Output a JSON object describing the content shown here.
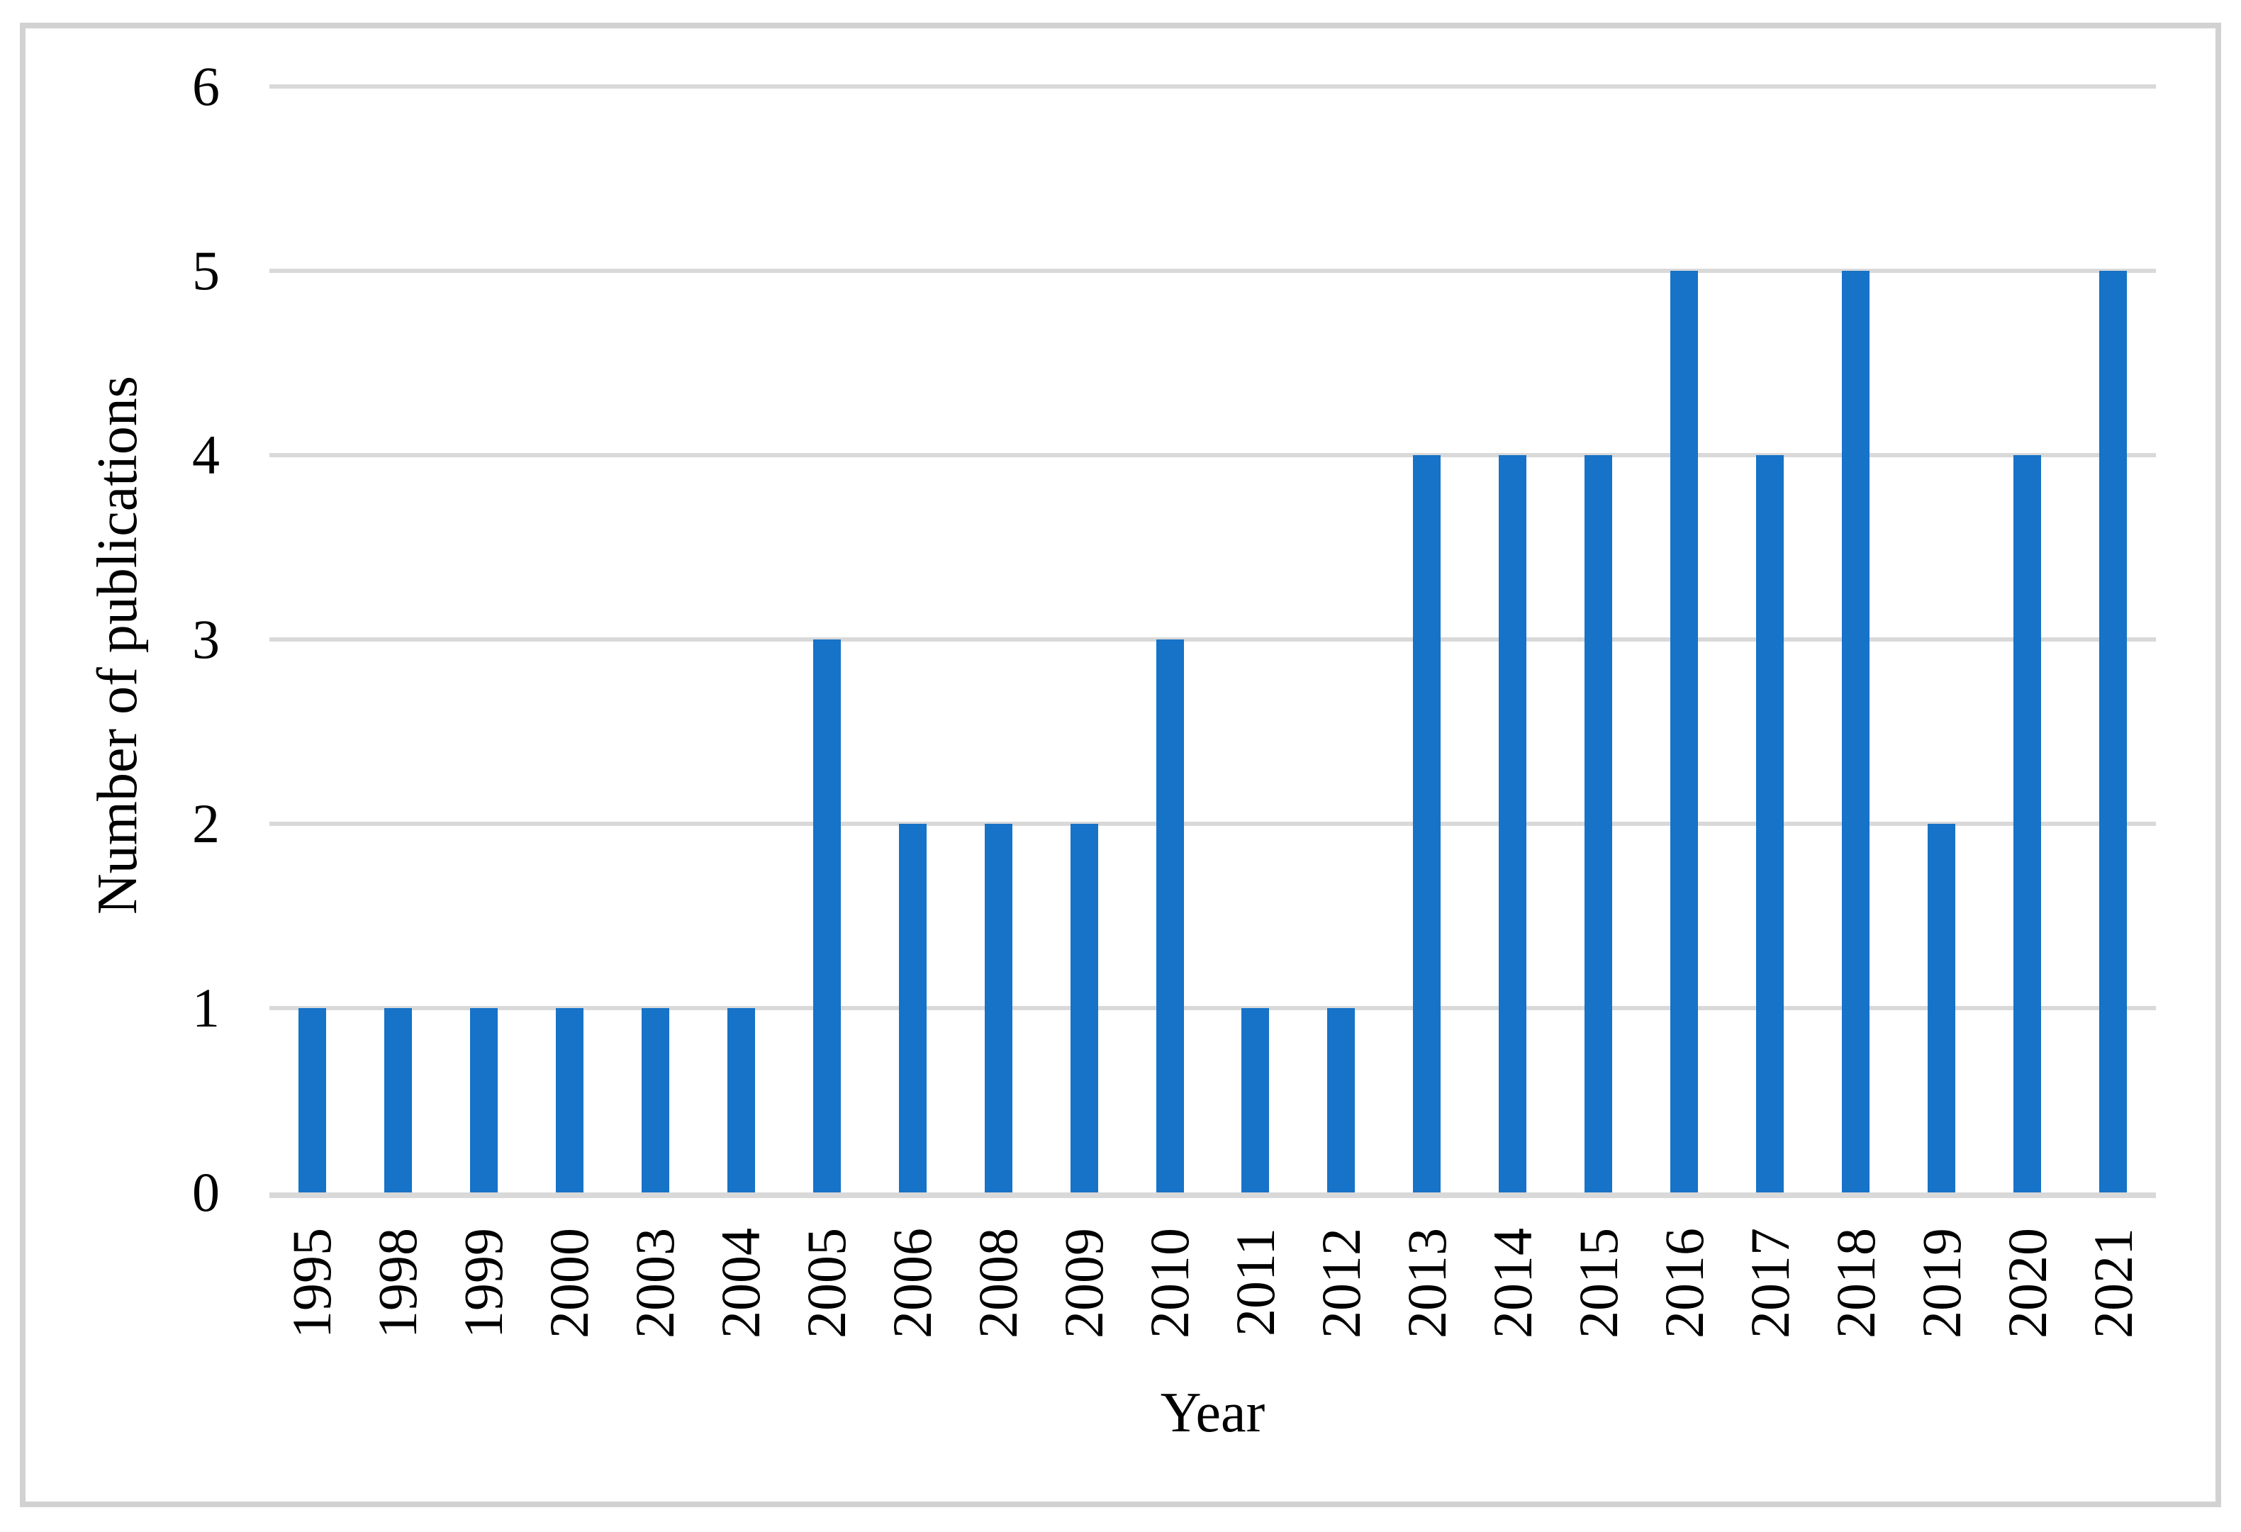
{
  "chart_data": {
    "type": "bar",
    "title": "",
    "xlabel": "Year",
    "ylabel": "Number of publications",
    "categories": [
      "1995",
      "1998",
      "1999",
      "2000",
      "2003",
      "2004",
      "2005",
      "2006",
      "2008",
      "2009",
      "2010",
      "2011",
      "2012",
      "2013",
      "2014",
      "2015",
      "2016",
      "2017",
      "2018",
      "2019",
      "2020",
      "2021"
    ],
    "values": [
      1,
      1,
      1,
      1,
      1,
      1,
      3,
      2,
      2,
      2,
      3,
      1,
      1,
      4,
      4,
      4,
      5,
      4,
      5,
      2,
      4,
      5
    ],
    "ylim": [
      0,
      6
    ],
    "yticks": [
      0,
      1,
      2,
      3,
      4,
      5,
      6
    ],
    "grid": "horizontal",
    "legend": "none",
    "colors": {
      "bar": "#1673c7",
      "gridline": "#d9d9d9",
      "frame": "#d2d2d2",
      "text": "#000000",
      "background": "#ffffff"
    }
  }
}
